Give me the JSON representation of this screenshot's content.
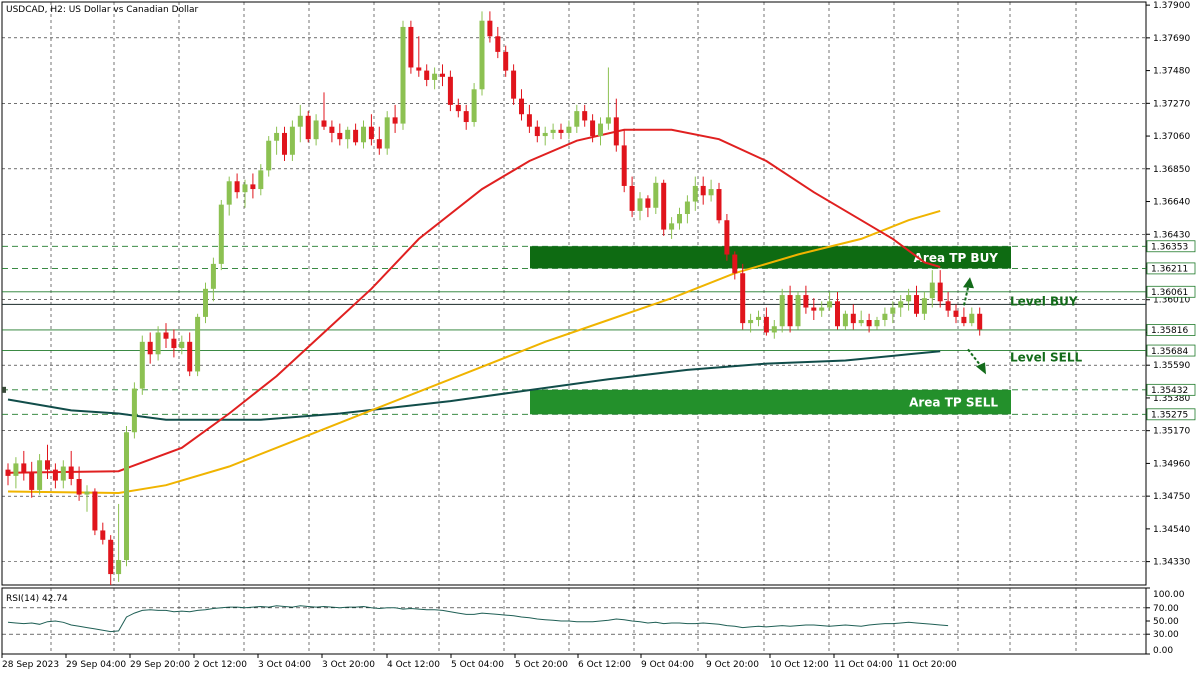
{
  "header": {
    "title": "USDCAD, H2:  US Dollar vs Canadian Dollar"
  },
  "rsi_panel": {
    "title": "RSI(14) 42.74"
  },
  "colors": {
    "bull": "#8cc152",
    "bear": "#e0141c",
    "ma_red": "#e02020",
    "ma_yellow": "#f0b400",
    "ma_teal": "#114d4a",
    "box_dark": "#0e6b12",
    "box_mid": "#23902b",
    "grid": "#1a1a1a",
    "text_dark_green": "#136b1a",
    "rsi_line": "#1f5f55"
  },
  "chart_data": [
    {
      "type": "candlestick",
      "title": "USDCAD, H2:  US Dollar vs Canadian Dollar",
      "y_ticks": [
        "1.37900",
        "1.37690",
        "1.37480",
        "1.37270",
        "1.37060",
        "1.36850",
        "1.36640",
        "1.36430",
        "1.36220",
        "1.36010",
        "1.35800",
        "1.35590",
        "1.35380",
        "1.35170",
        "1.34960",
        "1.34750",
        "1.34540",
        "1.34330"
      ],
      "ylim": [
        1.3418,
        1.3792
      ],
      "x_tick_labels": [
        "28 Sep 2023",
        "29 Sep 04:00",
        "29 Sep 20:00",
        "2 Oct 12:00",
        "3 Oct 04:00",
        "3 Oct 20:00",
        "4 Oct 12:00",
        "5 Oct 04:00",
        "5 Oct 20:00",
        "6 Oct 12:00",
        "9 Oct 04:00",
        "9 Oct 20:00",
        "10 Oct 12:00",
        "11 Oct 04:00",
        "11 Oct 20:00"
      ],
      "price_tags": [
        {
          "label": "1.36353",
          "value": 1.36353,
          "style": "dashed"
        },
        {
          "label": "1.36211",
          "value": 1.36211,
          "style": "dashed"
        },
        {
          "label": "1.36061",
          "value": 1.36061,
          "style": "solid"
        },
        {
          "label": "1.35816",
          "value": 1.35816,
          "style": "current"
        },
        {
          "label": "1.35684",
          "value": 1.35684,
          "style": "solid"
        },
        {
          "label": "1.35432",
          "value": 1.35432,
          "style": "dashed"
        },
        {
          "label": "1.35275",
          "value": 1.35275,
          "style": "dashed"
        }
      ],
      "level_line": 1.3598,
      "zones": [
        {
          "label": "Area TP BUY",
          "from": 1.36353,
          "to": 1.36211
        },
        {
          "label": "Area TP SELL",
          "from": 1.35432,
          "to": 1.35275
        }
      ],
      "annotations": [
        {
          "label": "Level BUY",
          "value": 1.36,
          "arrow": "up"
        },
        {
          "label": "Level SELL",
          "value": 1.3564,
          "arrow": "down"
        }
      ],
      "candles": [
        [
          1.3492,
          1.3496,
          1.3482,
          1.3488
        ],
        [
          1.3488,
          1.35,
          1.348,
          1.3496
        ],
        [
          1.3496,
          1.3504,
          1.3485,
          1.349
        ],
        [
          1.349,
          1.3497,
          1.3474,
          1.3479
        ],
        [
          1.3479,
          1.3502,
          1.3476,
          1.3498
        ],
        [
          1.3498,
          1.3508,
          1.3486,
          1.3492
        ],
        [
          1.3492,
          1.3496,
          1.348,
          1.3485
        ],
        [
          1.3485,
          1.3498,
          1.348,
          1.3494
        ],
        [
          1.3494,
          1.3504,
          1.3482,
          1.3486
        ],
        [
          1.3486,
          1.3494,
          1.3472,
          1.3476
        ],
        [
          1.3476,
          1.3482,
          1.3465,
          1.3478
        ],
        [
          1.3478,
          1.348,
          1.345,
          1.3453
        ],
        [
          1.3453,
          1.3458,
          1.3444,
          1.3447
        ],
        [
          1.3447,
          1.345,
          1.3418,
          1.3425
        ],
        [
          1.3425,
          1.347,
          1.342,
          1.3434
        ],
        [
          1.3434,
          1.352,
          1.343,
          1.3516
        ],
        [
          1.3516,
          1.3548,
          1.3512,
          1.3544
        ],
        [
          1.3544,
          1.3578,
          1.354,
          1.3574
        ],
        [
          1.3574,
          1.358,
          1.356,
          1.3566
        ],
        [
          1.3566,
          1.3584,
          1.3562,
          1.358
        ],
        [
          1.358,
          1.3586,
          1.357,
          1.3576
        ],
        [
          1.3576,
          1.3582,
          1.3564,
          1.357
        ],
        [
          1.357,
          1.3578,
          1.3566,
          1.3574
        ],
        [
          1.3574,
          1.358,
          1.3552,
          1.3555
        ],
        [
          1.3555,
          1.3592,
          1.3552,
          1.359
        ],
        [
          1.359,
          1.3612,
          1.3586,
          1.3608
        ],
        [
          1.3608,
          1.3628,
          1.36,
          1.3624
        ],
        [
          1.3624,
          1.3665,
          1.362,
          1.3662
        ],
        [
          1.3662,
          1.368,
          1.3655,
          1.3677
        ],
        [
          1.3677,
          1.3682,
          1.3666,
          1.367
        ],
        [
          1.367,
          1.3678,
          1.366,
          1.3675
        ],
        [
          1.3675,
          1.3682,
          1.3666,
          1.3672
        ],
        [
          1.3672,
          1.3688,
          1.3668,
          1.3684
        ],
        [
          1.3684,
          1.3706,
          1.368,
          1.3703
        ],
        [
          1.3703,
          1.3712,
          1.3694,
          1.3708
        ],
        [
          1.3708,
          1.3712,
          1.369,
          1.3694
        ],
        [
          1.3694,
          1.3716,
          1.369,
          1.3712
        ],
        [
          1.3712,
          1.3726,
          1.3702,
          1.3719
        ],
        [
          1.3719,
          1.3722,
          1.3702,
          1.3704
        ],
        [
          1.3704,
          1.372,
          1.37,
          1.3716
        ],
        [
          1.3716,
          1.3734,
          1.371,
          1.3712
        ],
        [
          1.3712,
          1.3716,
          1.3702,
          1.3708
        ],
        [
          1.3708,
          1.3714,
          1.37,
          1.3704
        ],
        [
          1.3704,
          1.3712,
          1.3698,
          1.371
        ],
        [
          1.371,
          1.3714,
          1.37,
          1.3702
        ],
        [
          1.3702,
          1.3716,
          1.3698,
          1.3712
        ],
        [
          1.3712,
          1.372,
          1.37,
          1.3704
        ],
        [
          1.3704,
          1.3712,
          1.3694,
          1.3698
        ],
        [
          1.3698,
          1.3722,
          1.3694,
          1.3718
        ],
        [
          1.3718,
          1.3726,
          1.3708,
          1.3714
        ],
        [
          1.3714,
          1.378,
          1.371,
          1.3776
        ],
        [
          1.3776,
          1.378,
          1.3746,
          1.375
        ],
        [
          1.375,
          1.377,
          1.3744,
          1.3748
        ],
        [
          1.3748,
          1.3752,
          1.3738,
          1.3742
        ],
        [
          1.3742,
          1.375,
          1.3736,
          1.3746
        ],
        [
          1.3746,
          1.3752,
          1.3738,
          1.3744
        ],
        [
          1.3744,
          1.3748,
          1.3722,
          1.3726
        ],
        [
          1.3726,
          1.373,
          1.3718,
          1.3722
        ],
        [
          1.3722,
          1.3726,
          1.371,
          1.3715
        ],
        [
          1.3715,
          1.374,
          1.3712,
          1.3736
        ],
        [
          1.3736,
          1.3786,
          1.3732,
          1.378
        ],
        [
          1.378,
          1.3786,
          1.3766,
          1.377
        ],
        [
          1.377,
          1.3776,
          1.3756,
          1.376
        ],
        [
          1.376,
          1.3764,
          1.3744,
          1.3748
        ],
        [
          1.3748,
          1.3752,
          1.3726,
          1.373
        ],
        [
          1.373,
          1.3736,
          1.3716,
          1.372
        ],
        [
          1.372,
          1.3726,
          1.3708,
          1.3712
        ],
        [
          1.3712,
          1.3716,
          1.3702,
          1.3706
        ],
        [
          1.3706,
          1.3712,
          1.37,
          1.3708
        ],
        [
          1.3708,
          1.3714,
          1.3704,
          1.371
        ],
        [
          1.371,
          1.3714,
          1.3704,
          1.3708
        ],
        [
          1.3708,
          1.3716,
          1.3704,
          1.3712
        ],
        [
          1.3712,
          1.3726,
          1.3708,
          1.3722
        ],
        [
          1.3722,
          1.3726,
          1.3712,
          1.3716
        ],
        [
          1.3716,
          1.372,
          1.3702,
          1.3706
        ],
        [
          1.3706,
          1.3718,
          1.37,
          1.3714
        ],
        [
          1.3714,
          1.375,
          1.371,
          1.3718
        ],
        [
          1.3718,
          1.373,
          1.3696,
          1.37
        ],
        [
          1.37,
          1.371,
          1.367,
          1.3674
        ],
        [
          1.3674,
          1.368,
          1.3654,
          1.3658
        ],
        [
          1.3658,
          1.367,
          1.3652,
          1.3666
        ],
        [
          1.3666,
          1.3668,
          1.3654,
          1.366
        ],
        [
          1.366,
          1.368,
          1.3656,
          1.3676
        ],
        [
          1.3676,
          1.3678,
          1.3642,
          1.3646
        ],
        [
          1.3646,
          1.3654,
          1.364,
          1.365
        ],
        [
          1.365,
          1.366,
          1.3646,
          1.3656
        ],
        [
          1.3656,
          1.3668,
          1.365,
          1.3664
        ],
        [
          1.3664,
          1.368,
          1.3658,
          1.3674
        ],
        [
          1.3674,
          1.368,
          1.3662,
          1.3668
        ],
        [
          1.3668,
          1.3678,
          1.3664,
          1.3672
        ],
        [
          1.3672,
          1.3676,
          1.365,
          1.3652
        ],
        [
          1.3652,
          1.3656,
          1.3626,
          1.363
        ],
        [
          1.363,
          1.3632,
          1.3614,
          1.3618
        ],
        [
          1.3618,
          1.3624,
          1.3582,
          1.3586
        ],
        [
          1.3586,
          1.3592,
          1.358,
          1.3588
        ],
        [
          1.3588,
          1.3594,
          1.3584,
          1.359
        ],
        [
          1.359,
          1.3596,
          1.3578,
          1.358
        ],
        [
          1.358,
          1.3588,
          1.3576,
          1.3584
        ],
        [
          1.3584,
          1.3608,
          1.358,
          1.3604
        ],
        [
          1.3604,
          1.361,
          1.358,
          1.3584
        ],
        [
          1.3584,
          1.3606,
          1.3582,
          1.3604
        ],
        [
          1.3604,
          1.361,
          1.3592,
          1.3596
        ],
        [
          1.3596,
          1.3602,
          1.3588,
          1.3594
        ],
        [
          1.3594,
          1.36,
          1.359,
          1.3596
        ],
        [
          1.3596,
          1.3606,
          1.3594,
          1.36
        ],
        [
          1.36,
          1.3606,
          1.3582,
          1.3584
        ],
        [
          1.3584,
          1.3594,
          1.3582,
          1.3592
        ],
        [
          1.3592,
          1.3598,
          1.3582,
          1.3586
        ],
        [
          1.3586,
          1.3594,
          1.3584,
          1.3588
        ],
        [
          1.3588,
          1.3592,
          1.358,
          1.3584
        ],
        [
          1.3584,
          1.359,
          1.3582,
          1.3588
        ],
        [
          1.3588,
          1.3596,
          1.3584,
          1.3592
        ],
        [
          1.3592,
          1.36,
          1.3586,
          1.3596
        ],
        [
          1.3596,
          1.3604,
          1.359,
          1.36
        ],
        [
          1.36,
          1.3608,
          1.3594,
          1.3604
        ],
        [
          1.3604,
          1.361,
          1.359,
          1.3592
        ],
        [
          1.3592,
          1.3606,
          1.3588,
          1.3602
        ],
        [
          1.3602,
          1.362,
          1.3596,
          1.3612
        ],
        [
          1.3612,
          1.362,
          1.3596,
          1.36
        ],
        [
          1.36,
          1.3606,
          1.359,
          1.3594
        ],
        [
          1.3594,
          1.3598,
          1.3586,
          1.359
        ],
        [
          1.359,
          1.3596,
          1.3584,
          1.3586
        ],
        [
          1.3586,
          1.3596,
          1.3584,
          1.3592
        ],
        [
          1.3592,
          1.3596,
          1.3578,
          1.3582
        ]
      ],
      "ma_fast": [
        [
          0,
          1.349
        ],
        [
          14,
          1.3491
        ],
        [
          22,
          1.3506
        ],
        [
          28,
          1.3528
        ],
        [
          34,
          1.3552
        ],
        [
          40,
          1.358
        ],
        [
          46,
          1.3608
        ],
        [
          52,
          1.364
        ],
        [
          60,
          1.3672
        ],
        [
          66,
          1.369
        ],
        [
          72,
          1.3703
        ],
        [
          78,
          1.371
        ],
        [
          84,
          1.371
        ],
        [
          90,
          1.3704
        ],
        [
          96,
          1.369
        ],
        [
          102,
          1.367
        ],
        [
          108,
          1.3652
        ],
        [
          112,
          1.364
        ],
        [
          116,
          1.3625
        ],
        [
          118,
          1.3622
        ]
      ],
      "ma_mid": [
        [
          0,
          1.3478
        ],
        [
          14,
          1.3477
        ],
        [
          20,
          1.3482
        ],
        [
          28,
          1.3494
        ],
        [
          36,
          1.351
        ],
        [
          44,
          1.3526
        ],
        [
          52,
          1.3542
        ],
        [
          60,
          1.3558
        ],
        [
          68,
          1.3574
        ],
        [
          76,
          1.3588
        ],
        [
          84,
          1.3602
        ],
        [
          92,
          1.3618
        ],
        [
          100,
          1.363
        ],
        [
          108,
          1.364
        ],
        [
          114,
          1.3652
        ],
        [
          118,
          1.3658
        ]
      ],
      "ma_slow": [
        [
          0,
          1.3537
        ],
        [
          8,
          1.353
        ],
        [
          14,
          1.3528
        ],
        [
          20,
          1.3524
        ],
        [
          32,
          1.3524
        ],
        [
          42,
          1.3528
        ],
        [
          56,
          1.3536
        ],
        [
          66,
          1.3543
        ],
        [
          76,
          1.355
        ],
        [
          86,
          1.3556
        ],
        [
          96,
          1.356
        ],
        [
          106,
          1.3562
        ],
        [
          114,
          1.3566
        ],
        [
          118,
          1.3568
        ]
      ],
      "rsi": {
        "title": "RSI(14) 42.74",
        "ylim": [
          0,
          100
        ],
        "ticks": [
          "100.00",
          "70.00",
          "50.00",
          "30.00",
          "0.00"
        ],
        "levels": [
          70,
          30
        ],
        "values": [
          48,
          47,
          46,
          47,
          45,
          49,
          50,
          48,
          44,
          42,
          40,
          38,
          36,
          34,
          35,
          56,
          62,
          66,
          67,
          66,
          66,
          64,
          65,
          64,
          66,
          67,
          69,
          70,
          71,
          71,
          70,
          71,
          72,
          71,
          73,
          72,
          71,
          73,
          72,
          71,
          72,
          71,
          70,
          71,
          71,
          72,
          70,
          69,
          70,
          70,
          68,
          69,
          68,
          67,
          67,
          66,
          64,
          62,
          60,
          60,
          62,
          61,
          60,
          59,
          58,
          56,
          55,
          53,
          52,
          51,
          50,
          50,
          49,
          49,
          49,
          50,
          51,
          53,
          52,
          50,
          49,
          47,
          48,
          46,
          47,
          47,
          46,
          46,
          47,
          46,
          45,
          43,
          42,
          40,
          41,
          42,
          41,
          42,
          43,
          42,
          43,
          44,
          44,
          43,
          42,
          43,
          44,
          43,
          42,
          44,
          45,
          46,
          46,
          47,
          48,
          47,
          46,
          45,
          44,
          43
        ]
      },
      "rsi_x_offset": 3
    }
  ]
}
